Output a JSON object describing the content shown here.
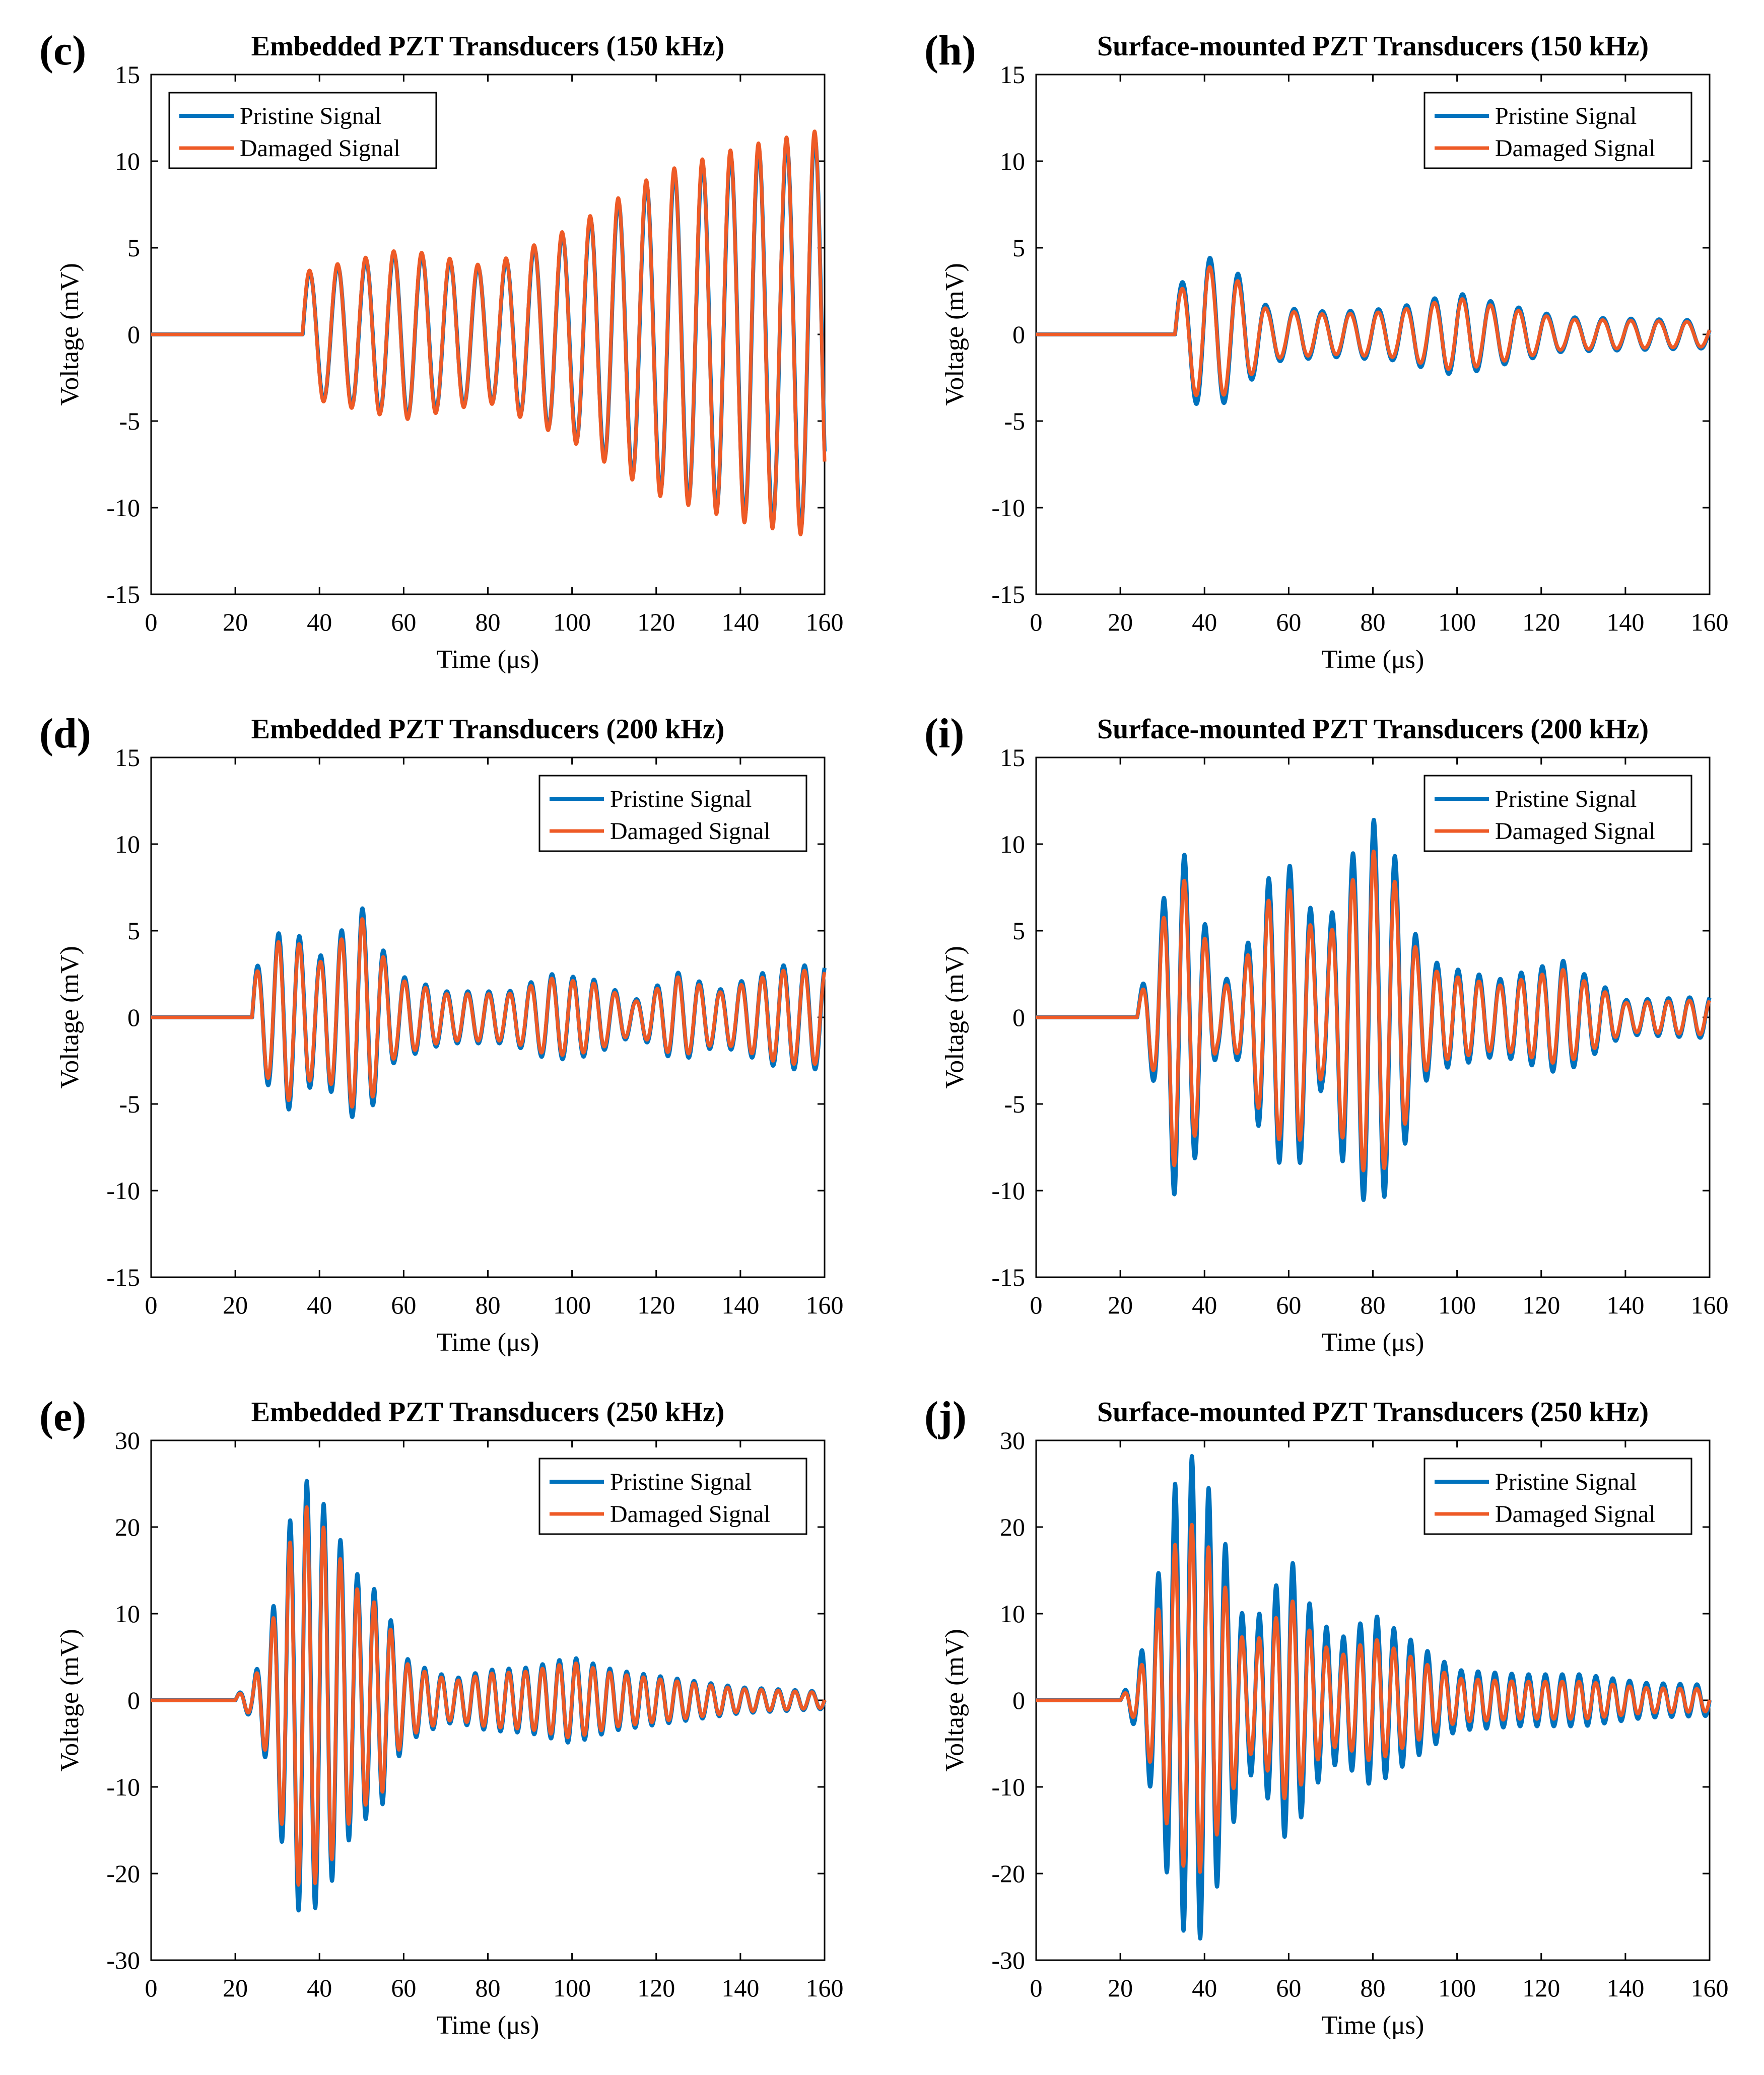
{
  "figure": {
    "legend": {
      "pristine": "Pristine Signal",
      "damaged": "Damaged Signal"
    },
    "colors": {
      "pristine": "#0072BD",
      "damaged": "#EE5A26",
      "axis": "#000000"
    }
  },
  "chart_data": [
    {
      "id": "c",
      "letter": "(",
      "letter_id": "c",
      "letter_close": ")",
      "type": "line",
      "title": "Embedded PZT Transducers (150 kHz)",
      "xlabel": "Time (μs)",
      "ylabel": "Voltage (mV)",
      "xlim": [
        0,
        160
      ],
      "ylim": [
        -15,
        15
      ],
      "xticks": [
        "0",
        "20",
        "40",
        "60",
        "80",
        "100",
        "120",
        "140",
        "160"
      ],
      "yticks": [
        "15",
        "10",
        "5",
        "0",
        "-5",
        "-10",
        "-15"
      ],
      "legend_location": "top-left",
      "signal": {
        "onset": 36,
        "frequency_khz": 150,
        "amplitude_envelope": [
          [
            36,
            3.5
          ],
          [
            60,
            4.8
          ],
          [
            80,
            3.8
          ],
          [
            100,
            6
          ],
          [
            120,
            9
          ],
          [
            140,
            10.5
          ],
          [
            160,
            11.5
          ]
        ],
        "damage_scale": 1.03,
        "phase_shift": 0.04
      }
    },
    {
      "id": "h",
      "letter": "(",
      "letter_id": "h",
      "letter_close": ")",
      "type": "line",
      "title": "Surface-mounted PZT Transducers (150 kHz)",
      "xlabel": "Time (μs)",
      "ylabel": "Voltage (mV)",
      "xlim": [
        0,
        160
      ],
      "ylim": [
        -15,
        15
      ],
      "xticks": [
        "0",
        "20",
        "40",
        "60",
        "80",
        "100",
        "120",
        "140",
        "160"
      ],
      "yticks": [
        "15",
        "10",
        "5",
        "0",
        "-5",
        "-10",
        "-15"
      ],
      "legend_location": "top-right",
      "signal": {
        "onset": 33,
        "frequency_khz": 150,
        "amplitude_envelope": [
          [
            33,
            2.5
          ],
          [
            40,
            4.6
          ],
          [
            48,
            3.5
          ],
          [
            55,
            1.6
          ],
          [
            70,
            1.3
          ],
          [
            85,
            1.5
          ],
          [
            100,
            2.4
          ],
          [
            110,
            1.8
          ],
          [
            125,
            1.0
          ],
          [
            160,
            0.8
          ]
        ],
        "damage_scale": 0.88,
        "phase_shift": 0.05
      }
    },
    {
      "id": "d",
      "letter": "(",
      "letter_id": "d",
      "letter_close": ")",
      "type": "line",
      "title": "Embedded PZT Transducers (200 kHz)",
      "xlabel": "Time (μs)",
      "ylabel": "Voltage (mV)",
      "xlim": [
        0,
        160
      ],
      "ylim": [
        -15,
        15
      ],
      "xticks": [
        "0",
        "20",
        "40",
        "60",
        "80",
        "100",
        "120",
        "140",
        "160"
      ],
      "yticks": [
        "15",
        "10",
        "5",
        "0",
        "-5",
        "-10",
        "-15"
      ],
      "legend_location": "top-right",
      "signal": {
        "onset": 24,
        "frequency_khz": 200,
        "amplitude_envelope": [
          [
            24,
            2.5
          ],
          [
            32,
            5.5
          ],
          [
            40,
            3.5
          ],
          [
            50,
            6.4
          ],
          [
            58,
            2.5
          ],
          [
            70,
            1.5
          ],
          [
            85,
            1.5
          ],
          [
            95,
            2.5
          ],
          [
            105,
            2.2
          ],
          [
            115,
            1.0
          ],
          [
            125,
            2.6
          ],
          [
            135,
            1.6
          ],
          [
            150,
            3.0
          ],
          [
            160,
            3.0
          ]
        ],
        "damage_scale": 0.9,
        "phase_shift": 0.05
      }
    },
    {
      "id": "i",
      "letter": "(",
      "letter_id": "i",
      "letter_close": ")",
      "type": "line",
      "title": "Surface-mounted PZT Transducers (200 kHz)",
      "xlabel": "Time (μs)",
      "ylabel": "Voltage (mV)",
      "xlim": [
        0,
        160
      ],
      "ylim": [
        -15,
        15
      ],
      "xticks": [
        "0",
        "20",
        "40",
        "60",
        "80",
        "100",
        "120",
        "140",
        "160"
      ],
      "yticks": [
        "15",
        "10",
        "5",
        "0",
        "-5",
        "-10",
        "-15"
      ],
      "legend_location": "top-right",
      "signal": {
        "onset": 24,
        "frequency_khz": 200,
        "amplitude_envelope": [
          [
            24,
            1.0
          ],
          [
            28,
            3.8
          ],
          [
            33,
            10.5
          ],
          [
            38,
            8.0
          ],
          [
            43,
            2.0
          ],
          [
            48,
            2.5
          ],
          [
            55,
            8.0
          ],
          [
            62,
            9.0
          ],
          [
            68,
            4.0
          ],
          [
            73,
            8.5
          ],
          [
            80,
            11.5
          ],
          [
            86,
            9.0
          ],
          [
            91,
            4.0
          ],
          [
            96,
            3.0
          ],
          [
            110,
            2.2
          ],
          [
            125,
            3.3
          ],
          [
            140,
            1.0
          ],
          [
            160,
            1.2
          ]
        ],
        "damage_scale": 0.84,
        "phase_shift": 0.04
      }
    },
    {
      "id": "e",
      "letter": "(",
      "letter_id": "e",
      "letter_close": ")",
      "type": "line",
      "title": "Embedded PZT Transducers (250 kHz)",
      "xlabel": "Time (μs)",
      "ylabel": "Voltage (mV)",
      "xlim": [
        0,
        160
      ],
      "ylim": [
        -30,
        30
      ],
      "xticks": [
        "0",
        "20",
        "40",
        "60",
        "80",
        "100",
        "120",
        "140",
        "160"
      ],
      "yticks": [
        "30",
        "20",
        "10",
        "0",
        "-10",
        "-20",
        "-30"
      ],
      "legend_location": "top-right",
      "signal": {
        "onset": 20,
        "frequency_khz": 250,
        "amplitude_envelope": [
          [
            20,
            0.5
          ],
          [
            24,
            2.0
          ],
          [
            28,
            8.0
          ],
          [
            32,
            19.0
          ],
          [
            36,
            26.0
          ],
          [
            42,
            22.0
          ],
          [
            48,
            15.0
          ],
          [
            55,
            12.0
          ],
          [
            60,
            5.0
          ],
          [
            66,
            3.5
          ],
          [
            72,
            2.5
          ],
          [
            80,
            3.5
          ],
          [
            90,
            3.8
          ],
          [
            100,
            5.0
          ],
          [
            110,
            3.5
          ],
          [
            125,
            2.5
          ],
          [
            140,
            1.5
          ],
          [
            160,
            1.0
          ]
        ],
        "damage_scale": 0.88,
        "phase_shift": 0.05
      }
    },
    {
      "id": "j",
      "letter": "(",
      "letter_id": "j",
      "letter_close": ")",
      "type": "line",
      "title": "Surface-mounted PZT Transducers (250 kHz)",
      "xlabel": "Time (μs)",
      "ylabel": "Voltage (mV)",
      "xlim": [
        0,
        160
      ],
      "ylim": [
        -30,
        30
      ],
      "xticks": [
        "0",
        "20",
        "40",
        "60",
        "80",
        "100",
        "120",
        "140",
        "160"
      ],
      "yticks": [
        "30",
        "20",
        "10",
        "0",
        "-10",
        "-20",
        "-30"
      ],
      "legend_location": "top-right",
      "signal": {
        "onset": 20,
        "frequency_khz": 250,
        "amplitude_envelope": [
          [
            20,
            0.3
          ],
          [
            24,
            3.5
          ],
          [
            28,
            12.0
          ],
          [
            33,
            25.0
          ],
          [
            38,
            29.0
          ],
          [
            44,
            20.0
          ],
          [
            50,
            8.0
          ],
          [
            56,
            12.0
          ],
          [
            60,
            17.0
          ],
          [
            66,
            10.0
          ],
          [
            72,
            7.0
          ],
          [
            80,
            10.0
          ],
          [
            86,
            8.0
          ],
          [
            92,
            6.0
          ],
          [
            100,
            3.5
          ],
          [
            115,
            3.0
          ],
          [
            130,
            3.0
          ],
          [
            145,
            2.0
          ],
          [
            160,
            1.8
          ]
        ],
        "damage_scale": 0.72,
        "phase_shift": 0.05
      }
    }
  ]
}
